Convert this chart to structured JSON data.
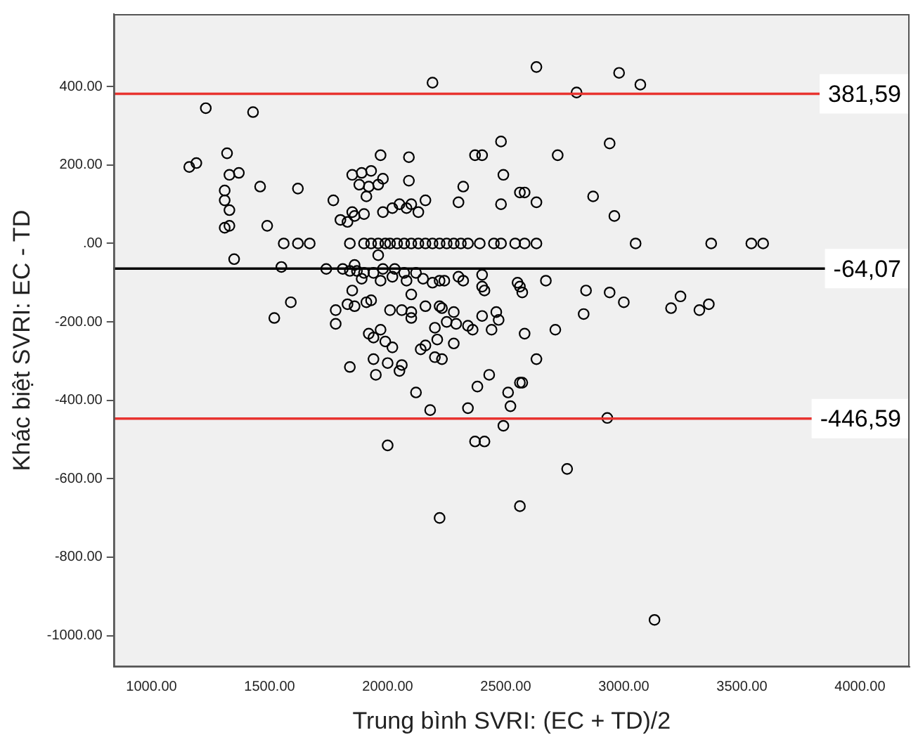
{
  "chart_data": {
    "type": "scatter",
    "xlabel": "Trung bình SVRI: (EC + TD)/2",
    "ylabel": "Khác biệt SVRI: EC - TD",
    "marker": "circle",
    "xlim": [
      840,
      4210
    ],
    "ylim": [
      -1080,
      585
    ],
    "xticks": [
      {
        "value": 1000,
        "label": "1000.00"
      },
      {
        "value": 1500,
        "label": "1500.00"
      },
      {
        "value": 2000,
        "label": "2000.00"
      },
      {
        "value": 2500,
        "label": "2500.00"
      },
      {
        "value": 3000,
        "label": "3000.00"
      },
      {
        "value": 3500,
        "label": "3500.00"
      },
      {
        "value": 4000,
        "label": "4000.00"
      }
    ],
    "yticks": [
      {
        "value": 400,
        "label": "400.00"
      },
      {
        "value": 200,
        "label": "200.00"
      },
      {
        "value": 0,
        "label": ".00"
      },
      {
        "value": -200,
        "label": "-200.00"
      },
      {
        "value": -400,
        "label": "-400.00"
      },
      {
        "value": -600,
        "label": "-600.00"
      },
      {
        "value": -800,
        "label": "-800.00"
      },
      {
        "value": -1000,
        "label": "-1000.00"
      }
    ],
    "ref_lines": [
      {
        "axis": "y",
        "value": 381.59,
        "label": "381,59",
        "color": "#e8332f"
      },
      {
        "axis": "y",
        "value": -64.07,
        "label": "-64,07",
        "color": "#000000"
      },
      {
        "axis": "y",
        "value": -446.59,
        "label": "-446,59",
        "color": "#e8332f"
      }
    ],
    "series": [
      {
        "color": "#000000",
        "x": [
          2190,
          1230,
          1430,
          2480,
          1320,
          1970,
          2090,
          2370,
          2400,
          1160,
          1190,
          1330,
          1370,
          1850,
          1890,
          1930,
          1980,
          2090,
          2490,
          1880,
          1920,
          1960,
          1310,
          1460,
          1620,
          2320,
          2560,
          1310,
          1910,
          1770,
          2160,
          2300,
          2480,
          1330,
          1850,
          1900,
          1980,
          2020,
          2050,
          2080,
          2100,
          2130,
          1800,
          1830,
          1860,
          1310,
          1330,
          1490,
          1560,
          1620,
          1670,
          1840,
          1900,
          1930,
          1960,
          1990,
          2010,
          2040,
          2070,
          2100,
          2130,
          2160,
          2190,
          2220,
          2250,
          2280,
          2310,
          2340,
          2390,
          2450,
          2480,
          2540,
          2580,
          2630,
          3050,
          3370,
          3540,
          3590,
          2630,
          2980,
          3070,
          2800,
          2940,
          2720,
          2580,
          2630,
          2870,
          2960,
          1350,
          1550,
          1740,
          1810,
          1840,
          1870,
          1900,
          1940,
          1980,
          2030,
          2070,
          2120,
          1960,
          1860,
          1890,
          1970,
          2020,
          2080,
          2150,
          2190,
          2220,
          2240,
          2300,
          2320,
          2400,
          2550,
          1850,
          2400,
          2410,
          2100,
          1590,
          1520,
          1780,
          1830,
          1860,
          1910,
          1930,
          2010,
          2060,
          2100,
          2100,
          2160,
          2220,
          2230,
          2280,
          2290,
          2250,
          2340,
          2360,
          2400,
          2440,
          2460,
          2470,
          1780,
          1970,
          1920,
          1940,
          1990,
          2020,
          2200,
          2210,
          2280,
          2140,
          2160,
          2200,
          2230,
          1940,
          2000,
          2060,
          2050,
          1950,
          1840,
          2430,
          2380,
          2510,
          2520,
          2560,
          2120,
          2180,
          2340,
          2490,
          2000,
          2370,
          2410,
          2560,
          2570,
          2670,
          2840,
          2940,
          3000,
          2830,
          3200,
          3240,
          3320,
          3360,
          2580,
          2710,
          2630,
          2570,
          2930,
          2760,
          2560,
          2220,
          3130
        ],
        "values": [
          410,
          345,
          335,
          260,
          230,
          225,
          220,
          225,
          225,
          195,
          205,
          175,
          180,
          175,
          180,
          185,
          165,
          160,
          175,
          150,
          145,
          150,
          135,
          145,
          140,
          145,
          130,
          110,
          120,
          110,
          110,
          105,
          100,
          85,
          80,
          75,
          80,
          90,
          100,
          90,
          100,
          80,
          60,
          55,
          70,
          40,
          45,
          45,
          0,
          0,
          0,
          0,
          0,
          0,
          0,
          0,
          0,
          0,
          0,
          0,
          0,
          0,
          0,
          0,
          0,
          0,
          0,
          0,
          0,
          0,
          0,
          0,
          0,
          0,
          0,
          0,
          0,
          0,
          450,
          435,
          405,
          385,
          255,
          225,
          130,
          105,
          120,
          70,
          -40,
          -60,
          -65,
          -65,
          -70,
          -70,
          -75,
          -75,
          -65,
          -65,
          -75,
          -75,
          -30,
          -55,
          -90,
          -95,
          -85,
          -95,
          -90,
          -100,
          -95,
          -95,
          -85,
          -95,
          -80,
          -100,
          -120,
          -110,
          -120,
          -130,
          -150,
          -190,
          -170,
          -155,
          -160,
          -150,
          -145,
          -170,
          -170,
          -175,
          -190,
          -160,
          -160,
          -165,
          -175,
          -205,
          -200,
          -210,
          -220,
          -185,
          -220,
          -175,
          -195,
          -205,
          -220,
          -230,
          -240,
          -250,
          -265,
          -215,
          -245,
          -255,
          -270,
          -260,
          -290,
          -295,
          -295,
          -305,
          -310,
          -325,
          -335,
          -315,
          -335,
          -365,
          -380,
          -415,
          -355,
          -380,
          -425,
          -420,
          -465,
          -515,
          -505,
          -505,
          -110,
          -125,
          -95,
          -120,
          -125,
          -150,
          -180,
          -165,
          -135,
          -170,
          -155,
          -230,
          -220,
          -295,
          -355,
          -445,
          -575,
          -670,
          -700,
          -960
        ]
      }
    ]
  }
}
